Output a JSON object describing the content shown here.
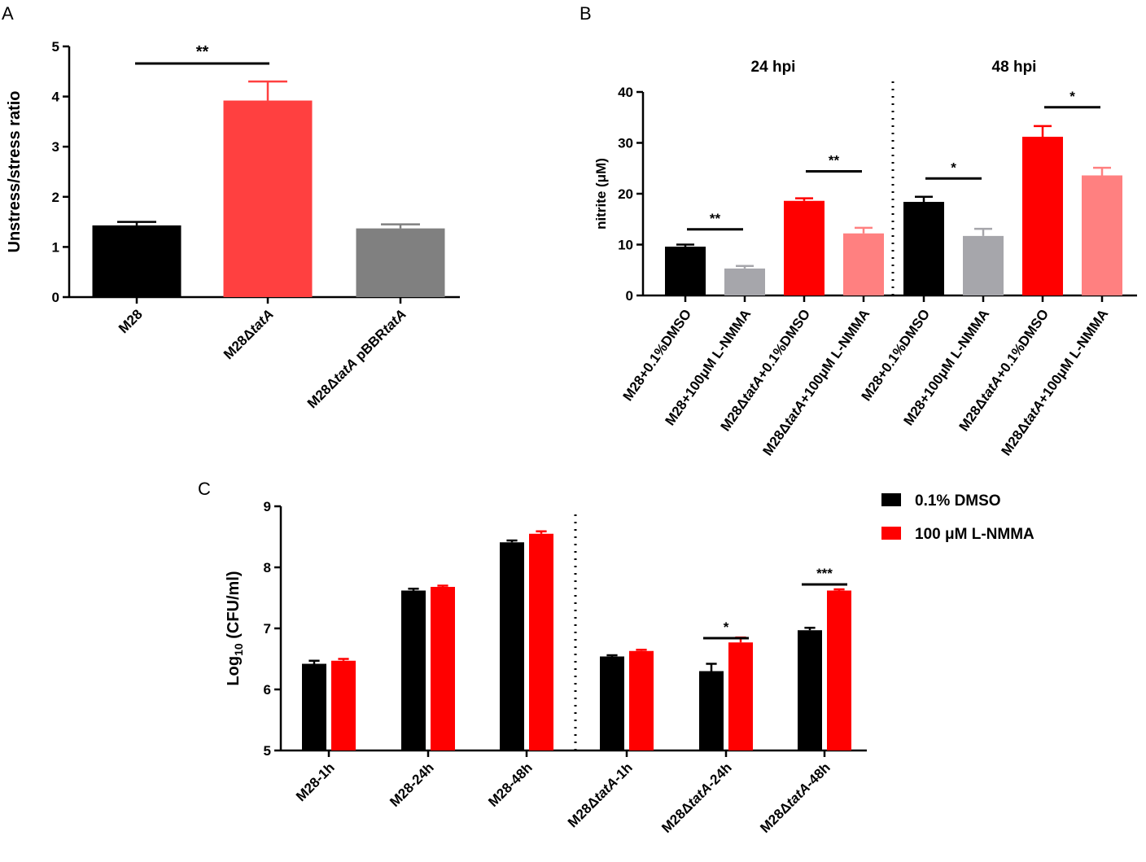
{
  "chart_data": [
    {
      "panel": "A",
      "type": "bar",
      "ylabel": "Unstress/stress ratio",
      "ylim": [
        0,
        5
      ],
      "yticks": [
        "0",
        "1",
        "2",
        "3",
        "4",
        "5"
      ],
      "categories": [
        {
          "parts": [
            {
              "t": "M28",
              "i": false
            }
          ]
        },
        {
          "parts": [
            {
              "t": "M28Δ",
              "i": false
            },
            {
              "t": "tatA",
              "i": true
            }
          ]
        },
        {
          "parts": [
            {
              "t": "M28Δ",
              "i": false
            },
            {
              "t": "tatA",
              "i": true
            },
            {
              "t": " pBBR",
              "i": false
            },
            {
              "t": "tatA",
              "i": true
            }
          ]
        }
      ],
      "values": [
        1.43,
        3.92,
        1.37
      ],
      "errors": [
        0.07,
        0.38,
        0.08
      ],
      "colors": [
        "#000000",
        "#ff4040",
        "#808080"
      ],
      "significance": [
        {
          "from": 0,
          "to": 1,
          "label": "**",
          "y": 4.66
        }
      ]
    },
    {
      "panel": "B",
      "type": "bar",
      "ylabel": "nitrite (μM)",
      "ylim": [
        0,
        40
      ],
      "yticks": [
        "0",
        "10",
        "20",
        "30",
        "40"
      ],
      "groups": [
        "24 hpi",
        "48 hpi"
      ],
      "categories": [
        {
          "parts": [
            {
              "t": "M28+0.1%DMSO",
              "i": false
            }
          ]
        },
        {
          "parts": [
            {
              "t": "M28+100μM L-NMMA",
              "i": false
            }
          ]
        },
        {
          "parts": [
            {
              "t": "M28Δ",
              "i": false
            },
            {
              "t": "tatA",
              "i": true
            },
            {
              "t": "+0.1%DMSO",
              "i": false
            }
          ]
        },
        {
          "parts": [
            {
              "t": "M28Δ",
              "i": false
            },
            {
              "t": "tatA",
              "i": true
            },
            {
              "t": "+100μM L-NMMA",
              "i": false
            }
          ]
        },
        {
          "parts": [
            {
              "t": "M28+0.1%DMSO",
              "i": false
            }
          ]
        },
        {
          "parts": [
            {
              "t": "M28+100μM L-NMMA",
              "i": false
            }
          ]
        },
        {
          "parts": [
            {
              "t": "M28Δ",
              "i": false
            },
            {
              "t": "tatA",
              "i": true
            },
            {
              "t": "+0.1%DMSO",
              "i": false
            }
          ]
        },
        {
          "parts": [
            {
              "t": "M28Δ",
              "i": false
            },
            {
              "t": "tatA",
              "i": true
            },
            {
              "t": "+100μM L-NMMA",
              "i": false
            }
          ]
        }
      ],
      "values": [
        9.6,
        5.3,
        18.6,
        12.2,
        18.4,
        11.7,
        31.2,
        23.6
      ],
      "errors": [
        0.4,
        0.5,
        0.5,
        1.1,
        1.0,
        1.4,
        2.1,
        1.5
      ],
      "colors": [
        "#000000",
        "#a6a6ab",
        "#ff0000",
        "#ff8080",
        "#000000",
        "#a6a6ab",
        "#ff0000",
        "#ff8080"
      ],
      "significance": [
        {
          "from": 0,
          "to": 1,
          "label": "**",
          "y": 13.0
        },
        {
          "from": 2,
          "to": 3,
          "label": "**",
          "y": 24.4
        },
        {
          "from": 4,
          "to": 5,
          "label": "*",
          "y": 23.0
        },
        {
          "from": 6,
          "to": 7,
          "label": "*",
          "y": 37.0
        }
      ]
    },
    {
      "panel": "C",
      "type": "bar",
      "ylabel": "Log10 (CFU/ml)",
      "ylabel_parts": [
        {
          "t": "Log",
          "sub": false
        },
        {
          "t": "10",
          "sub": true
        },
        {
          "t": " (CFU/ml)",
          "sub": false
        }
      ],
      "ylim": [
        5,
        9
      ],
      "yticks": [
        "5",
        "6",
        "7",
        "8",
        "9"
      ],
      "categories": [
        {
          "parts": [
            {
              "t": "M28-1h",
              "i": false
            }
          ]
        },
        {
          "parts": [
            {
              "t": "M28-24h",
              "i": false
            }
          ]
        },
        {
          "parts": [
            {
              "t": "M28-48h",
              "i": false
            }
          ]
        },
        {
          "parts": [
            {
              "t": "M28Δ",
              "i": false
            },
            {
              "t": "tatA",
              "i": true
            },
            {
              "t": "-1h",
              "i": false
            }
          ]
        },
        {
          "parts": [
            {
              "t": "M28Δ",
              "i": false
            },
            {
              "t": "tatA",
              "i": true
            },
            {
              "t": "-24h",
              "i": false
            }
          ]
        },
        {
          "parts": [
            {
              "t": "M28Δ",
              "i": false
            },
            {
              "t": "tatA",
              "i": true
            },
            {
              "t": "-48h",
              "i": false
            }
          ]
        }
      ],
      "series": [
        {
          "name": "0.1% DMSO",
          "color": "#000000",
          "values": [
            6.42,
            7.62,
            8.41,
            6.54,
            6.3,
            6.97
          ],
          "errors": [
            0.05,
            0.03,
            0.03,
            0.02,
            0.12,
            0.04
          ]
        },
        {
          "name": "100 μM L-NMMA",
          "color": "#ff0000",
          "values": [
            6.47,
            7.68,
            8.55,
            6.63,
            6.77,
            7.62
          ],
          "errors": [
            0.03,
            0.02,
            0.04,
            0.02,
            0.08,
            0.02
          ]
        }
      ],
      "significance": [
        {
          "group": 4,
          "label": "*",
          "y": 6.84
        },
        {
          "group": 5,
          "label": "***",
          "y": 7.72
        }
      ]
    }
  ],
  "labels": {
    "a": "A",
    "b": "B",
    "c": "C"
  }
}
